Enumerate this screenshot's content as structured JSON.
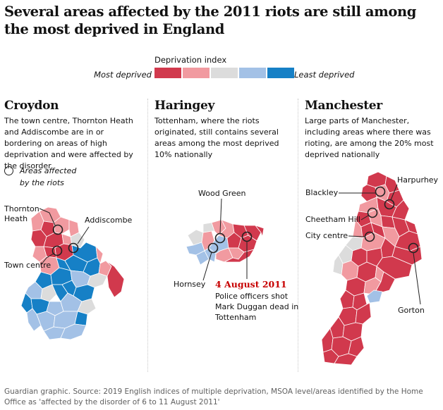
{
  "title": "Several areas affected by the 2011 riots are still among the most deprived in England",
  "legend": {
    "title": "Deprivation index",
    "left_label": "Most deprived",
    "right_label": "Least deprived",
    "colors": [
      "#d1394d",
      "#f19aa0",
      "#dcdcdc",
      "#a3c1e6",
      "#1680c6"
    ]
  },
  "key": {
    "text": "Areas affected by the riots"
  },
  "panels": {
    "croydon": {
      "title": "Croydon",
      "description": "The town centre, Thornton Heath and Addiscombe are in or bordering on areas of high deprivation and were affected by the disorder",
      "labels": {
        "thornton_heath": "Thornton Heath",
        "addiscombe": "Addiscombe",
        "town_centre": "Town centre"
      }
    },
    "haringey": {
      "title": "Haringey",
      "description": "Tottenham, where the riots originated, still contains several areas among the most deprived 10% nationally",
      "labels": {
        "wood_green": "Wood Green",
        "hornsey": "Hornsey"
      },
      "event": {
        "date": "4 August 2011",
        "text": "Police officers shot Mark Duggan dead in Tottenham"
      }
    },
    "manchester": {
      "title": "Manchester",
      "description": "Large parts of Manchester, including areas where there was rioting, are among the 20% most deprived nationally",
      "labels": {
        "harpurhey": "Harpurhey",
        "blackley": "Blackley",
        "cheetham_hill": "Cheetham Hill",
        "city_centre": "City centre",
        "gorton": "Gorton"
      }
    }
  },
  "footer": "Guardian graphic. Source: 2019 English indices of multiple deprivation, MSOA level/areas identified by the Home Office as 'affected by the disorder of 6 to 11 August 2011'"
}
